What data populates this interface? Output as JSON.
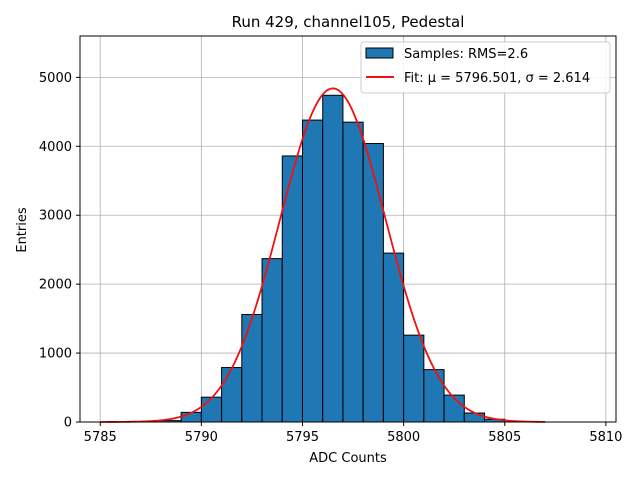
{
  "chart_data": {
    "type": "histogram",
    "title": "Run 429, channel105, Pedestal",
    "xlabel": "ADC Counts",
    "ylabel": "Entries",
    "xlim": [
      5784,
      5810.5
    ],
    "ylim": [
      0,
      5600
    ],
    "xticks": [
      5785,
      5790,
      5795,
      5800,
      5805,
      5810
    ],
    "yticks": [
      0,
      1000,
      2000,
      3000,
      4000,
      5000
    ],
    "grid": true,
    "legend_position": "top-right",
    "bin_width": 1,
    "bins": [
      {
        "x0": 5788,
        "count": 20
      },
      {
        "x0": 5789,
        "count": 140
      },
      {
        "x0": 5790,
        "count": 360
      },
      {
        "x0": 5791,
        "count": 790
      },
      {
        "x0": 5792,
        "count": 1560
      },
      {
        "x0": 5793,
        "count": 2370
      },
      {
        "x0": 5794,
        "count": 3860
      },
      {
        "x0": 5795,
        "count": 4380
      },
      {
        "x0": 5796,
        "count": 4740
      },
      {
        "x0": 5797,
        "count": 4350
      },
      {
        "x0": 5798,
        "count": 4040
      },
      {
        "x0": 5799,
        "count": 2450
      },
      {
        "x0": 5800,
        "count": 1260
      },
      {
        "x0": 5801,
        "count": 760
      },
      {
        "x0": 5802,
        "count": 390
      },
      {
        "x0": 5803,
        "count": 130
      },
      {
        "x0": 5804,
        "count": 40
      }
    ],
    "fit": {
      "mu": 5796.501,
      "sigma": 2.614,
      "amplitude": 4840,
      "x_range": [
        5785,
        5807
      ]
    },
    "series": [
      {
        "name": "Samples: RMS=2.6",
        "kind": "histogram",
        "color": "#1f77b4"
      },
      {
        "name": "Fit: μ = 5796.501, σ = 2.614",
        "kind": "line",
        "color": "#ee1111"
      }
    ]
  }
}
